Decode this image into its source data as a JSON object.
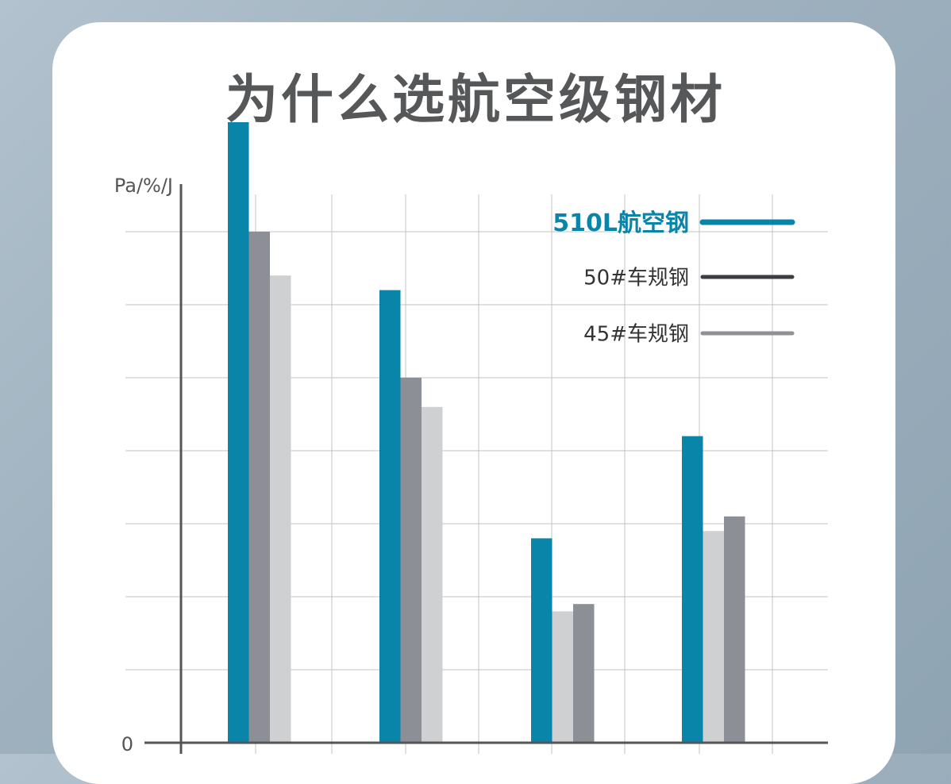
{
  "page": {
    "title": "为什么选航空级钢材"
  },
  "colors": {
    "series_510L": "#0a85aa",
    "series_50": "#8c8f96",
    "series_45": "#cfd0d1",
    "grid": "#c3c3c3",
    "axis": "#555555",
    "legend_50_line": "#3c3d42",
    "legend_45_line": "#8f9196"
  },
  "chart_data": {
    "type": "bar",
    "ylabel": "Pa/%/J",
    "y_ticks": [
      "0"
    ],
    "ylim": [
      0,
      10
    ],
    "grid": true,
    "legend_position": "top-right",
    "categories": [
      "",
      "",
      "",
      ""
    ],
    "series": [
      {
        "name": "510L航空钢",
        "values": [
          8.5,
          6.2,
          2.8,
          4.2
        ],
        "color": "#0a85aa"
      },
      {
        "name": "50#车规钢",
        "values": [
          7.0,
          5.0,
          1.9,
          3.1
        ],
        "color": "#8c8f96"
      },
      {
        "name": "45#车规钢",
        "values": [
          6.4,
          4.6,
          1.8,
          2.9
        ],
        "color": "#cfd0d1"
      }
    ]
  }
}
